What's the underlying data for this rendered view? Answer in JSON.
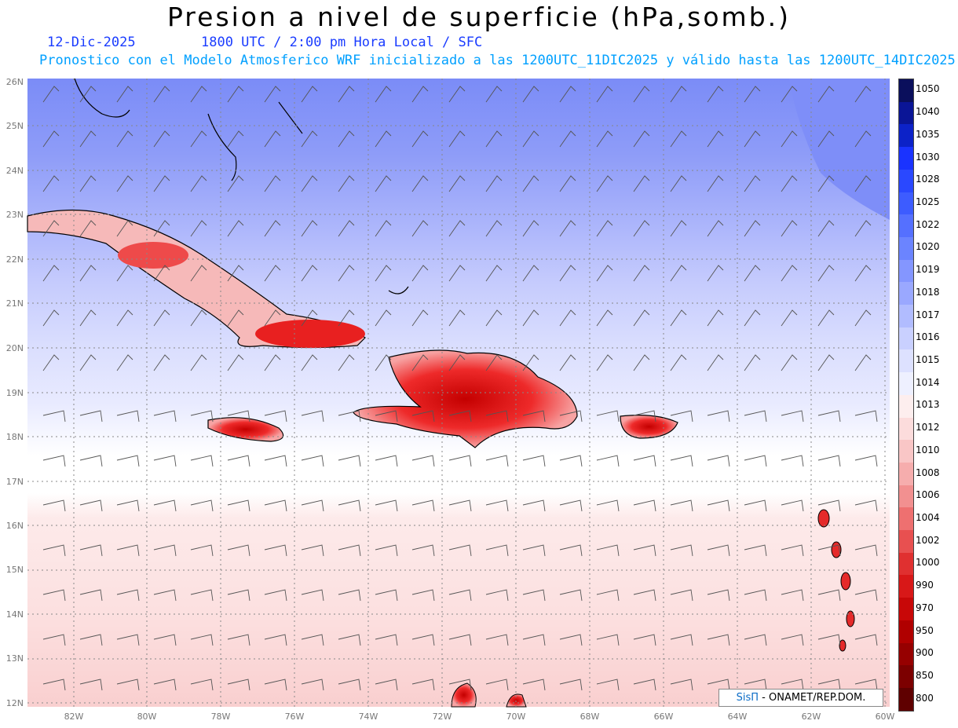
{
  "header": {
    "title": "Presion a nivel de superficie (hPa,somb.)",
    "date": "12-Dic-2025",
    "time_line": "1800 UTC / 2:00 pm Hora Local / SFC",
    "model_line": "Pronostico con el Modelo Atmosferico WRF inicializado a las 1200UTC_11DIC2025 y válido hasta las  1200UTC_14DIC2025"
  },
  "axes": {
    "lat_labels": [
      "26N",
      "25N",
      "24N",
      "23N",
      "22N",
      "21N",
      "20N",
      "19N",
      "18N",
      "17N",
      "16N",
      "15N",
      "14N",
      "13N",
      "12N"
    ],
    "lon_labels": [
      "82W",
      "80W",
      "78W",
      "76W",
      "74W",
      "72W",
      "70W",
      "68W",
      "66W",
      "64W",
      "62W",
      "60W"
    ]
  },
  "colorbar": {
    "labels": [
      "1050",
      "1040",
      "1035",
      "1030",
      "1028",
      "1025",
      "1022",
      "1020",
      "1019",
      "1018",
      "1017",
      "1016",
      "1015",
      "1014",
      "1013",
      "1012",
      "1010",
      "1008",
      "1006",
      "1004",
      "1002",
      "1000",
      "990",
      "970",
      "950",
      "900",
      "850",
      "800"
    ],
    "colors": [
      "#0a0f5c",
      "#0a1596",
      "#0c22c8",
      "#1a33ff",
      "#2a48ff",
      "#3d5cff",
      "#5570ff",
      "#6b84ff",
      "#8496ff",
      "#9aa8ff",
      "#b1bcff",
      "#c9d0ff",
      "#dde1ff",
      "#eef0ff",
      "#fdeeee",
      "#fcdcdc",
      "#f9c6c6",
      "#f6adad",
      "#f29090",
      "#ee7070",
      "#e85050",
      "#e03030",
      "#d81818",
      "#c80808",
      "#b00000",
      "#960000",
      "#7c0000",
      "#5f0000"
    ]
  },
  "credit": {
    "brand": "SisΠ",
    "text": " - ONAMET/REP.DOM."
  }
}
